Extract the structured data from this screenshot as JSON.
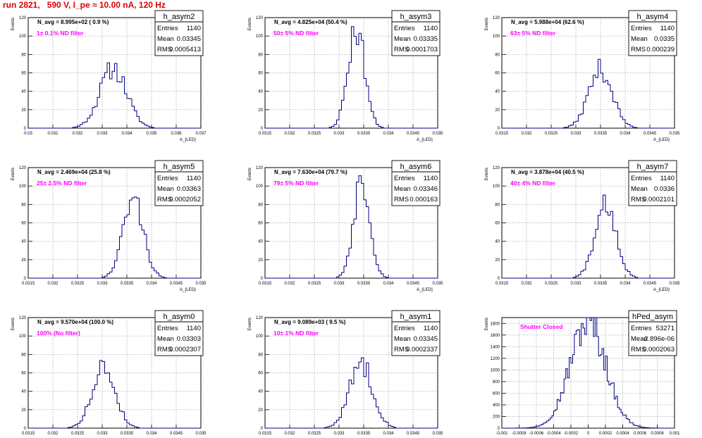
{
  "page_title": "run 2821,   590 V, I_pe ≈ 10.00 nA, 120 Hz",
  "stats_labels": {
    "entries": "Entries",
    "mean": "Mean",
    "rms": "RMS"
  },
  "colors": {
    "histogram_line": "#000080",
    "filter_label": "#ff00ff",
    "title_text": "#e00000",
    "grid": "#9a9a9a"
  },
  "chart_data": [
    {
      "type": "histogram",
      "name": "h_asym2",
      "ylabel": "Events",
      "xlabel": "A_{LED}",
      "xlim": [
        0.03,
        0.037
      ],
      "ylim": [
        0,
        120
      ],
      "xticks": [
        "0.03",
        "0.031",
        "0.032",
        "0.033",
        "0.034",
        "0.035",
        "0.036",
        "0.037"
      ],
      "yticks": [
        "0",
        "20",
        "40",
        "60",
        "80",
        "100",
        "120"
      ],
      "navg": "N_avg = 8.995e+02 ( 0.9 %)",
      "filter": "1± 0.1% ND filter",
      "entries": "1140",
      "mean": "0.03345",
      "rms": "0.0005413",
      "center": 0.03345,
      "width": 0.0005413,
      "peak": 65,
      "bin": 0.0001,
      "seed": 11,
      "grid": true
    },
    {
      "type": "histogram",
      "name": "h_asym3",
      "ylabel": "Events",
      "xlabel": "A_{LED}",
      "xlim": [
        0.0315,
        0.035
      ],
      "ylim": [
        0,
        120
      ],
      "xticks": [
        "0.0315",
        "0.032",
        "0.0325",
        "0.033",
        "0.0335",
        "0.034",
        "0.0345",
        "0.035"
      ],
      "yticks": [
        "0",
        "20",
        "40",
        "60",
        "80",
        "100",
        "120"
      ],
      "navg": "N_avg = 4.825e+04 (50.4 %)",
      "filter": "50± 5% ND filter",
      "entries": "1140",
      "mean": "0.03335",
      "rms": "0.0001703",
      "center": 0.03335,
      "width": 0.0001703,
      "peak": 108,
      "bin": 5e-05,
      "seed": 23,
      "grid": true
    },
    {
      "type": "histogram",
      "name": "h_asym4",
      "ylabel": "Events",
      "xlabel": "A_{LED}",
      "xlim": [
        0.0315,
        0.035
      ],
      "ylim": [
        0,
        120
      ],
      "xticks": [
        "0.0315",
        "0.032",
        "0.0325",
        "0.033",
        "0.0335",
        "0.034",
        "0.0345",
        "0.035"
      ],
      "yticks": [
        "0",
        "20",
        "40",
        "60",
        "80",
        "100",
        "120"
      ],
      "navg": "N_avg = 5.988e+04 (62.6 %)",
      "filter": "63± 5% ND filter",
      "entries": "1140",
      "mean": "0.0335",
      "rms": "0.000239",
      "center": 0.0335,
      "width": 0.000239,
      "peak": 64,
      "bin": 5e-05,
      "seed": 37,
      "grid": true
    },
    {
      "type": "histogram",
      "name": "h_asym5",
      "ylabel": "Events",
      "xlabel": "A_{LED}",
      "xlim": [
        0.0315,
        0.035
      ],
      "ylim": [
        0,
        120
      ],
      "xticks": [
        "0.0315",
        "0.032",
        "0.0325",
        "0.033",
        "0.0335",
        "0.034",
        "0.0345",
        "0.035"
      ],
      "yticks": [
        "0",
        "20",
        "40",
        "60",
        "80",
        "100",
        "120"
      ],
      "navg": "N_avg = 2.469e+04 (25.8 %)",
      "filter": "25± 2.5% ND filter",
      "entries": "1140",
      "mean": "0.03363",
      "rms": "0.0002052",
      "center": 0.03363,
      "width": 0.0002052,
      "peak": 86,
      "bin": 5e-05,
      "seed": 41,
      "grid": true
    },
    {
      "type": "histogram",
      "name": "h_asym6",
      "ylabel": "Events",
      "xlabel": "A_{LED}",
      "xlim": [
        0.0315,
        0.035
      ],
      "ylim": [
        0,
        120
      ],
      "xticks": [
        "0.0315",
        "0.032",
        "0.0325",
        "0.033",
        "0.0335",
        "0.034",
        "0.0345",
        "0.035"
      ],
      "yticks": [
        "0",
        "20",
        "40",
        "60",
        "80",
        "100",
        "120"
      ],
      "navg": "N_avg = 7.630e+04 (79.7 %)",
      "filter": "79± 5% ND filter",
      "entries": "1140",
      "mean": "0.03346",
      "rms": "0.000163",
      "center": 0.03346,
      "width": 0.000163,
      "peak": 110,
      "bin": 5e-05,
      "seed": 53,
      "grid": true
    },
    {
      "type": "histogram",
      "name": "h_asym7",
      "ylabel": "Events",
      "xlabel": "A_{LED}",
      "xlim": [
        0.0315,
        0.035
      ],
      "ylim": [
        0,
        120
      ],
      "xticks": [
        "0.0315",
        "0.032",
        "0.0325",
        "0.033",
        "0.0335",
        "0.034",
        "0.0345",
        "0.035"
      ],
      "yticks": [
        "0",
        "20",
        "40",
        "60",
        "80",
        "100",
        "120"
      ],
      "navg": "N_avg = 3.878e+04 (40.5 %)",
      "filter": "40± 4% ND filter",
      "entries": "1140",
      "mean": "0.0336",
      "rms": "0.0002101",
      "center": 0.0336,
      "width": 0.0002101,
      "peak": 85,
      "bin": 5e-05,
      "seed": 67,
      "grid": true
    },
    {
      "type": "histogram",
      "name": "h_asym0",
      "ylabel": "Events",
      "xlabel": "A_{LED}",
      "xlim": [
        0.0315,
        0.035
      ],
      "ylim": [
        0,
        120
      ],
      "xticks": [
        "0.0315",
        "0.032",
        "0.0325",
        "0.033",
        "0.0335",
        "0.034",
        "0.0345",
        "0.035"
      ],
      "yticks": [
        "0",
        "20",
        "40",
        "60",
        "80",
        "100",
        "120"
      ],
      "navg": "N_avg = 9.570e+04 (100.0 %)",
      "filter": "100% (No filter)",
      "entries": "1140",
      "mean": "0.03303",
      "rms": "0.0002307",
      "center": 0.03303,
      "width": 0.0002307,
      "peak": 66,
      "bin": 5e-05,
      "seed": 79,
      "grid": true
    },
    {
      "type": "histogram",
      "name": "h_asym1",
      "ylabel": "Events",
      "xlabel": "A_{LED}",
      "xlim": [
        0.0315,
        0.035
      ],
      "ylim": [
        0,
        120
      ],
      "xticks": [
        "0.0315",
        "0.032",
        "0.0325",
        "0.033",
        "0.0335",
        "0.034",
        "0.0345",
        "0.035"
      ],
      "yticks": [
        "0",
        "20",
        "40",
        "60",
        "80",
        "100",
        "120"
      ],
      "navg": "N_avg = 9.089e+03 ( 9.5 %)",
      "filter": "10± 1% ND filter",
      "entries": "1140",
      "mean": "0.03345",
      "rms": "0.0002337",
      "center": 0.03345,
      "width": 0.0002337,
      "peak": 71,
      "bin": 5e-05,
      "seed": 83,
      "grid": true
    },
    {
      "type": "histogram",
      "name": "hPed_asym",
      "ylabel": "Events",
      "xlabel": "",
      "xlim": [
        -0.001,
        0.001
      ],
      "ylim": [
        0,
        1900
      ],
      "xticks": [
        "-0.001",
        "-0.0008",
        "-0.0006",
        "-0.0004",
        "-0.0002",
        "0",
        "0.0002",
        "0.0004",
        "0.0006",
        "0.0008",
        "0.001"
      ],
      "yticks": [
        "0",
        "200",
        "400",
        "600",
        "800",
        "1000",
        "1200",
        "1400",
        "1600",
        "1800"
      ],
      "navg": "",
      "filter": "Shutter Closed",
      "entries": "53271",
      "mean": "-2.896e-06",
      "rms": "0.0002063",
      "center": -2.9e-06,
      "width": 0.0002063,
      "peak": 1830,
      "bin": 2e-05,
      "seed": 97,
      "grid": true
    }
  ]
}
